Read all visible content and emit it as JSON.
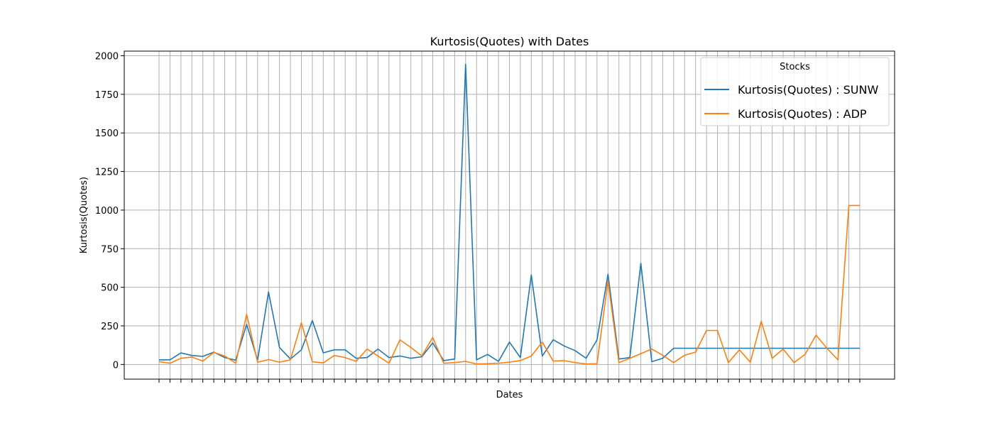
{
  "chart_data": {
    "type": "line",
    "title": "Kurtosis(Quotes) with Dates",
    "xlabel": "Dates",
    "ylabel": "Kurtosis(Quotes)",
    "ylim": [
      -95,
      2030
    ],
    "y_ticks": [
      0,
      250,
      500,
      750,
      1000,
      1250,
      1500,
      1750,
      2000
    ],
    "x_tick_count": 65,
    "x_tick_labels_shown": false,
    "grid": true,
    "legend": {
      "title": "Stocks",
      "placement": "top-right"
    },
    "series": [
      {
        "name": "Kurtosis(Quotes) : SUNW",
        "color": "#1f77b4",
        "values": [
          30,
          30,
          75,
          58,
          52,
          80,
          45,
          28,
          260,
          28,
          470,
          110,
          35,
          95,
          285,
          75,
          95,
          95,
          40,
          45,
          100,
          45,
          55,
          40,
          50,
          140,
          25,
          35,
          1945,
          30,
          65,
          20,
          145,
          45,
          580,
          55,
          160,
          120,
          90,
          40,
          160,
          585,
          35,
          45,
          655,
          18,
          40,
          105,
          105,
          105,
          105,
          105,
          105,
          105,
          105,
          105,
          105,
          105,
          105,
          105,
          105,
          105,
          105,
          105,
          105
        ]
      },
      {
        "name": "Kurtosis(Quotes) : ADP",
        "color": "#ff7f0e",
        "values": [
          18,
          8,
          40,
          48,
          22,
          78,
          55,
          8,
          325,
          15,
          32,
          15,
          30,
          270,
          18,
          10,
          58,
          45,
          20,
          100,
          55,
          8,
          160,
          110,
          55,
          175,
          8,
          12,
          20,
          3,
          5,
          8,
          15,
          25,
          55,
          145,
          22,
          25,
          12,
          3,
          5,
          540,
          12,
          40,
          70,
          100,
          60,
          12,
          60,
          80,
          220,
          220,
          12,
          95,
          15,
          280,
          40,
          100,
          12,
          65,
          190,
          105,
          30,
          1030,
          1030
        ]
      }
    ]
  }
}
